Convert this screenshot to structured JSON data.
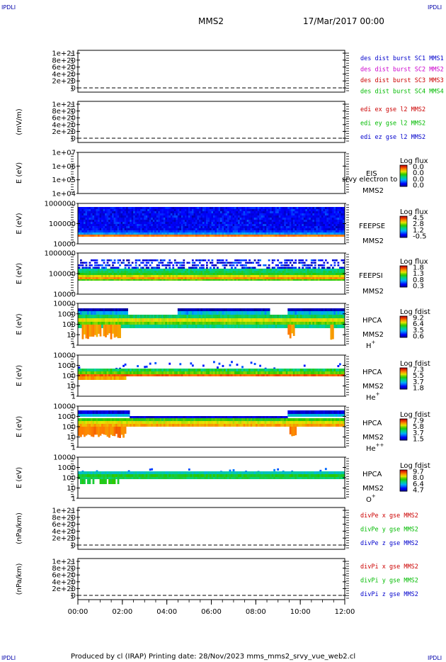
{
  "corner_labels": {
    "top_left": "IPDLI",
    "top_right": "IPDLI",
    "bottom_left": "IPDLI",
    "bottom_right": "IPDLI"
  },
  "header": {
    "spacecraft": "MMS2",
    "date": "17/Mar/2017 00:00"
  },
  "footer": {
    "text": "Produced by cl (IRAP)   Printing date: 28/Nov/2023   mms_mms2_srvy_vue_web2.cl"
  },
  "chart_data": {
    "type": "heatmap",
    "x_tick_labels": [
      "00:00",
      "02:00",
      "04:00",
      "06:00",
      "08:00",
      "10:00",
      "12:00"
    ],
    "x_range_hours": [
      0,
      12
    ],
    "panels": [
      {
        "id": "p1",
        "kind": "line",
        "ylabel": "",
        "yticks": [
          "1e+21",
          "8e+20",
          "6e+20",
          "4e+20",
          "2e+20",
          "0"
        ],
        "legend": [
          {
            "text": "des dist burst SC1 MMS1",
            "color": "#0000cc"
          },
          {
            "text": "des dist burst SC2 MMS2",
            "color": "#cc00cc"
          },
          {
            "text": "des dist burst SC3 MMS3",
            "color": "#cc0000"
          },
          {
            "text": "des dist burst SC4 MMS4",
            "color": "#00bb00"
          }
        ]
      },
      {
        "id": "p2",
        "kind": "line",
        "ylabel": "(mV/m)",
        "yticks": [
          "1e+21",
          "8e+20",
          "6e+20",
          "4e+20",
          "2e+20",
          "0"
        ],
        "legend": [
          {
            "text": "edi ex gse l2 MMS2",
            "color": "#cc0000"
          },
          {
            "text": "edi ey gse l2 MMS2",
            "color": "#00bb00"
          },
          {
            "text": "edi ez gse l2 MMS2",
            "color": "#0000cc"
          }
        ]
      },
      {
        "id": "p3",
        "kind": "spectrogram",
        "ylabel": "E (eV)",
        "yticks": [
          "1e+07",
          "1e+06",
          "1e+05",
          "1e+04"
        ],
        "instrument": "EIS",
        "spacecraft": "MMS2",
        "overlay_text": "srvy electron to",
        "colorbar_title": "Log flux",
        "colorbar_ticks": [
          "0.0",
          "0.0",
          "0.0",
          "0.0"
        ]
      },
      {
        "id": "p4",
        "kind": "spectrogram",
        "ylabel": "E (eV)",
        "yticks": [
          "1000000",
          "100000",
          "10000"
        ],
        "instrument": "FEEPSE",
        "spacecraft": "MMS2",
        "colorbar_title": "Log flux",
        "colorbar_ticks": [
          "4.5",
          "2.8",
          "1.2",
          "-0.5"
        ]
      },
      {
        "id": "p5",
        "kind": "spectrogram",
        "ylabel": "E (eV)",
        "yticks": [
          "1000000",
          "100000",
          "10000"
        ],
        "instrument": "FEEPSI",
        "spacecraft": "MMS2",
        "colorbar_title": "Log flux",
        "colorbar_ticks": [
          "1.8",
          "1.3",
          "0.8",
          "0.3"
        ]
      },
      {
        "id": "p6",
        "kind": "spectrogram",
        "ylabel": "E (eV)",
        "yticks": [
          "10000",
          "1000",
          "100",
          "10",
          "1"
        ],
        "instrument": "HPCA",
        "spacecraft": "MMS2",
        "species": "H",
        "species_sup": "+",
        "colorbar_title": "Log fdist",
        "colorbar_ticks": [
          "9.2",
          "6.4",
          "3.5",
          "0.6"
        ]
      },
      {
        "id": "p7",
        "kind": "spectrogram",
        "ylabel": "E (eV)",
        "yticks": [
          "10000",
          "1000",
          "100",
          "10",
          "1"
        ],
        "instrument": "HPCA",
        "spacecraft": "MMS2",
        "species": "He",
        "species_sup": "+",
        "colorbar_title": "Log fdist",
        "colorbar_ticks": [
          "7.3",
          "5.5",
          "3.7",
          "1.8"
        ]
      },
      {
        "id": "p8",
        "kind": "spectrogram",
        "ylabel": "E (eV)",
        "yticks": [
          "10000",
          "1000",
          "100",
          "10",
          "1"
        ],
        "instrument": "HPCA",
        "spacecraft": "MMS2",
        "species": "He",
        "species_sup": "++",
        "colorbar_title": "Log fdist",
        "colorbar_ticks": [
          "7.9",
          "5.8",
          "3.7",
          "1.5"
        ]
      },
      {
        "id": "p9",
        "kind": "spectrogram",
        "ylabel": "E (eV)",
        "yticks": [
          "10000",
          "1000",
          "100",
          "10",
          "1"
        ],
        "instrument": "HPCA",
        "spacecraft": "MMS2",
        "species": "O",
        "species_sup": "+",
        "colorbar_title": "Log fdist",
        "colorbar_ticks": [
          "9.7",
          "8.0",
          "6.4",
          "4.7"
        ]
      },
      {
        "id": "p10",
        "kind": "line",
        "ylabel": "(nPa/km)",
        "yticks": [
          "1e+21",
          "8e+20",
          "6e+20",
          "4e+20",
          "2e+20",
          "0"
        ],
        "legend": [
          {
            "text": "divPe x gse MMS2",
            "color": "#cc0000"
          },
          {
            "text": "divPe y gse MMS2",
            "color": "#00bb00"
          },
          {
            "text": "divPe z gse MMS2",
            "color": "#0000cc"
          }
        ]
      },
      {
        "id": "p11",
        "kind": "line",
        "ylabel": "(nPa/km)",
        "yticks": [
          "1e+21",
          "8e+20",
          "6e+20",
          "4e+20",
          "2e+20",
          "0"
        ],
        "legend": [
          {
            "text": "divPi x gse MMS2",
            "color": "#cc0000"
          },
          {
            "text": "divPi y gse MMS2",
            "color": "#00bb00"
          },
          {
            "text": "divPi z gse MMS2",
            "color": "#0000cc"
          }
        ]
      }
    ]
  }
}
